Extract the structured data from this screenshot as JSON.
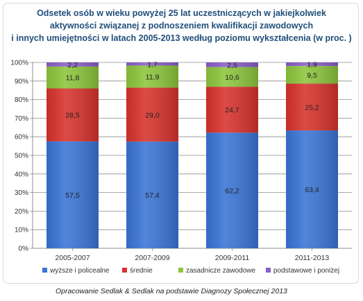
{
  "chart_data": {
    "type": "bar",
    "stacked": true,
    "percent": true,
    "title_lines": [
      "Odsetek osób w wieku powyżej 25 lat uczestniczących w jakiejkolwiek",
      "aktywności związanej z podnoszeniem kwalifikacji zawodowych",
      "i innych umiejętności w latach 2005-2013 według poziomu wykształcenia (w proc. )"
    ],
    "categories": [
      "2005-2007",
      "2007-2009",
      "2009-2011",
      "2011-2013"
    ],
    "series": [
      {
        "name": "wyższe i policealne",
        "values": [
          57.5,
          57.4,
          62.2,
          63.4
        ],
        "labels": [
          "57,5",
          "57,4",
          "62,2",
          "63,4"
        ],
        "color": "#3a74d6"
      },
      {
        "name": "średnie",
        "values": [
          28.5,
          29.0,
          24.7,
          25.2
        ],
        "labels": [
          "28,5",
          "29,0",
          "24,7",
          "25,2"
        ],
        "color": "#d8322c"
      },
      {
        "name": "zasadnicze zawodowe",
        "values": [
          11.8,
          11.9,
          10.6,
          9.5
        ],
        "labels": [
          "11,8",
          "11,9",
          "10,6",
          "9,5"
        ],
        "color": "#8cc63c"
      },
      {
        "name": "podstawowe i poniżej",
        "values": [
          2.2,
          1.7,
          2.5,
          1.9
        ],
        "labels": [
          "2,2",
          "1,7",
          "2,5",
          "1,9"
        ],
        "color": "#8b5ec8"
      }
    ],
    "y_ticks": [
      "0%",
      "10%",
      "20%",
      "30%",
      "40%",
      "50%",
      "60%",
      "70%",
      "80%",
      "90%",
      "100%"
    ],
    "ylim": [
      0,
      100
    ],
    "grid": true,
    "legend_position": "bottom"
  },
  "source_note": "Opracowanie Sedlak & Sedlak na podstawie Diagnozy Społecznej 2013"
}
